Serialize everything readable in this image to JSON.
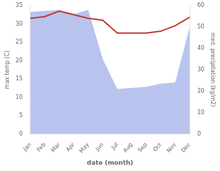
{
  "chart_data": {
    "type": "line",
    "categories": [
      "Jan",
      "Feb",
      "Mar",
      "Apr",
      "May",
      "Jun",
      "Jul",
      "Aug",
      "Sep",
      "Oct",
      "Nov",
      "Dec"
    ],
    "xlabel": "date (month)",
    "ylabel": "max temp (C)",
    "y2label": "med. precipitation (kg/m2)",
    "ylim": [
      0,
      35
    ],
    "yticks": [
      0,
      5,
      10,
      15,
      20,
      25,
      30,
      35
    ],
    "y2lim": [
      0,
      60
    ],
    "y2ticks": [
      0,
      10,
      20,
      30,
      40,
      50,
      60
    ],
    "grid": false,
    "series": [
      {
        "type": "area",
        "color": "#b8c4ee",
        "axis": "y2",
        "values": [
          57.0,
          57.5,
          58.0,
          56.0,
          58.0,
          35.0,
          21.0,
          21.5,
          22.0,
          23.5,
          24.0,
          50.0
        ]
      },
      {
        "type": "line",
        "color": "#c0392b",
        "axis": "y",
        "values": [
          31.5,
          32.0,
          33.5,
          32.5,
          31.5,
          31.0,
          27.5,
          27.5,
          27.5,
          28.0,
          29.5,
          31.8
        ]
      }
    ]
  }
}
